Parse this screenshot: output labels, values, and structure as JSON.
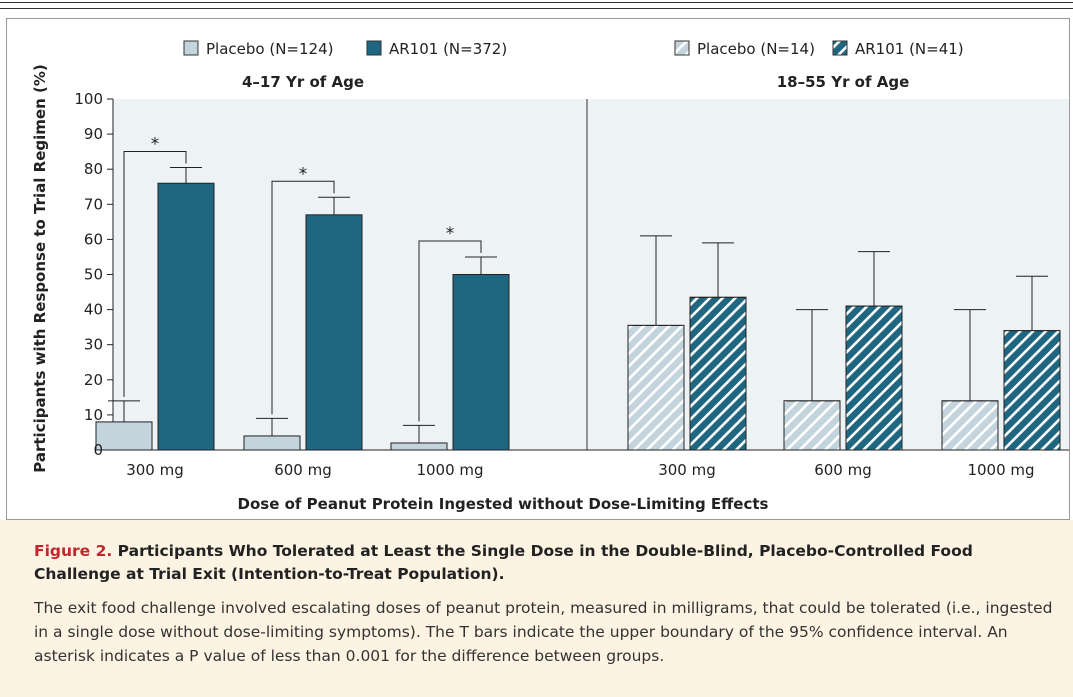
{
  "chart_data": {
    "type": "bar",
    "ylabel": "Participants with Response to Trial Regimen (%)",
    "xlabel": "Dose of Peanut Protein Ingested without Dose-Limiting Effects",
    "ylim": [
      0,
      100
    ],
    "yticks": [
      0,
      10,
      20,
      30,
      40,
      50,
      60,
      70,
      80,
      90,
      100
    ],
    "colors": {
      "placebo": "#c3d4dd",
      "ar101": "#1f6680",
      "panel_bg": "#edf2f5",
      "hatch": "#ffffff"
    },
    "panels": [
      {
        "title": "4–17 Yr of Age",
        "hatched": false,
        "categories": [
          "300 mg",
          "600 mg",
          "1000 mg"
        ],
        "series": [
          {
            "name": "Placebo (N=124)",
            "values": [
              8,
              4,
              2
            ],
            "upper_ci": [
              14,
              9,
              7
            ]
          },
          {
            "name": "AR101 (N=372)",
            "values": [
              76,
              67,
              50
            ],
            "upper_ci": [
              80.5,
              72,
              55
            ]
          }
        ],
        "significance": [
          {
            "category": "300 mg",
            "label": "*"
          },
          {
            "category": "600 mg",
            "label": "*"
          },
          {
            "category": "1000 mg",
            "label": "*"
          }
        ]
      },
      {
        "title": "18–55 Yr of Age",
        "hatched": true,
        "categories": [
          "300 mg",
          "600 mg",
          "1000 mg"
        ],
        "series": [
          {
            "name": "Placebo (N=14)",
            "values": [
              35.5,
              14,
              14
            ],
            "upper_ci": [
              61,
              40,
              40
            ]
          },
          {
            "name": "AR101 (N=41)",
            "values": [
              43.5,
              41,
              34
            ],
            "upper_ci": [
              59,
              56.5,
              49.5
            ]
          }
        ],
        "significance": []
      }
    ]
  },
  "caption": {
    "label": "Figure 2.",
    "title": "Participants Who Tolerated at Least the Single Dose in the Double-Blind, Placebo-Controlled Food Challenge at Trial Exit (Intention-to-Treat Population).",
    "body": "The exit food challenge involved escalating doses of peanut protein, measured in milligrams, that could be tolerated (i.e., ingested in a single dose without dose-limiting symptoms). The T bars indicate the upper boundary of the 95% confidence interval. An asterisk indicates a P value of less than 0.001 for the difference between groups."
  }
}
